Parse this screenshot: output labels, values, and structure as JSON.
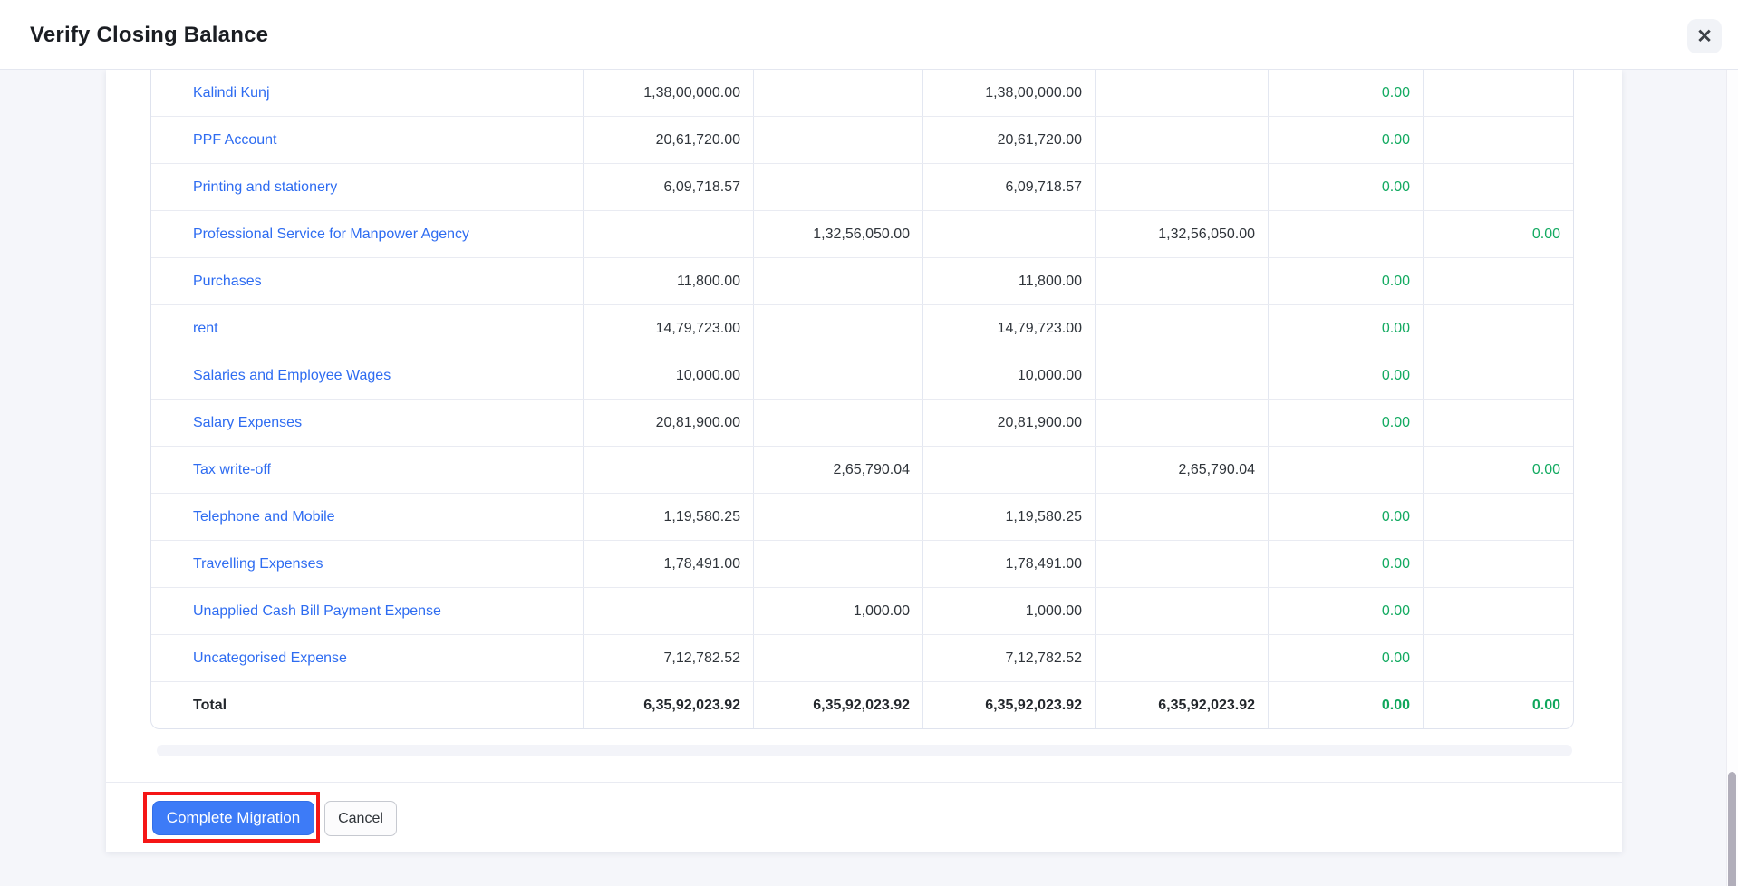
{
  "modal": {
    "title": "Verify Closing Balance",
    "close_icon": "✕"
  },
  "table": {
    "rows": [
      {
        "name": "Kalindi Kunj",
        "amounts": [
          "1,38,00,000.00",
          "",
          "1,38,00,000.00",
          "",
          "0.00",
          ""
        ]
      },
      {
        "name": "PPF Account",
        "amounts": [
          "20,61,720.00",
          "",
          "20,61,720.00",
          "",
          "0.00",
          ""
        ]
      },
      {
        "name": "Printing and stationery",
        "amounts": [
          "6,09,718.57",
          "",
          "6,09,718.57",
          "",
          "0.00",
          ""
        ]
      },
      {
        "name": "Professional Service for Manpower Agency",
        "amounts": [
          "",
          "1,32,56,050.00",
          "",
          "1,32,56,050.00",
          "",
          "0.00"
        ]
      },
      {
        "name": "Purchases",
        "amounts": [
          "11,800.00",
          "",
          "11,800.00",
          "",
          "0.00",
          ""
        ]
      },
      {
        "name": "rent",
        "amounts": [
          "14,79,723.00",
          "",
          "14,79,723.00",
          "",
          "0.00",
          ""
        ]
      },
      {
        "name": "Salaries and Employee Wages",
        "amounts": [
          "10,000.00",
          "",
          "10,000.00",
          "",
          "0.00",
          ""
        ]
      },
      {
        "name": "Salary Expenses",
        "amounts": [
          "20,81,900.00",
          "",
          "20,81,900.00",
          "",
          "0.00",
          ""
        ]
      },
      {
        "name": "Tax write-off",
        "amounts": [
          "",
          "2,65,790.04",
          "",
          "2,65,790.04",
          "",
          "0.00"
        ]
      },
      {
        "name": "Telephone and Mobile",
        "amounts": [
          "1,19,580.25",
          "",
          "1,19,580.25",
          "",
          "0.00",
          ""
        ]
      },
      {
        "name": "Travelling Expenses",
        "amounts": [
          "1,78,491.00",
          "",
          "1,78,491.00",
          "",
          "0.00",
          ""
        ]
      },
      {
        "name": "Unapplied Cash Bill Payment Expense",
        "amounts": [
          "",
          "1,000.00",
          "1,000.00",
          "",
          "0.00",
          ""
        ]
      },
      {
        "name": "Uncategorised Expense",
        "amounts": [
          "7,12,782.52",
          "",
          "7,12,782.52",
          "",
          "0.00",
          ""
        ]
      }
    ],
    "total": {
      "label": "Total",
      "amounts": [
        "6,35,92,023.92",
        "6,35,92,023.92",
        "6,35,92,023.92",
        "6,35,92,023.92",
        "0.00",
        "0.00"
      ]
    }
  },
  "footer": {
    "primary_label": "Complete Migration",
    "cancel_label": "Cancel"
  },
  "colors": {
    "primary_blue": "#3d7bf7",
    "link_blue": "#2e6cf1",
    "positive_green": "#13aa61",
    "annotation_red": "#f51616"
  }
}
